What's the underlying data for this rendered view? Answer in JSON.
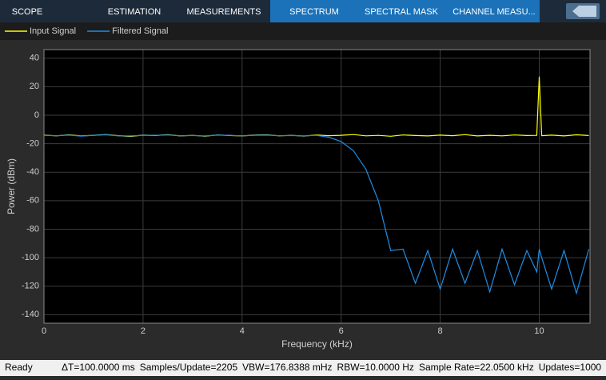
{
  "toolbar": {
    "tabs": [
      "SCOPE",
      "ESTIMATION",
      "MEASUREMENTS",
      "SPECTRUM",
      "SPECTRAL MASK",
      "CHANNEL MEASU..."
    ]
  },
  "chart_data": {
    "type": "line",
    "x_label": "Frequency (kHz)",
    "y_label": "Power (dBm)",
    "x": [
      0,
      0.25,
      0.5,
      0.75,
      1,
      1.25,
      1.5,
      1.75,
      2,
      2.25,
      2.5,
      2.75,
      3,
      3.25,
      3.5,
      3.75,
      4,
      4.25,
      4.5,
      4.75,
      5,
      5.25,
      5.5,
      5.75,
      6,
      6.25,
      6.5,
      6.75,
      7,
      7.25,
      7.5,
      7.75,
      8,
      8.25,
      8.5,
      8.75,
      9,
      9.25,
      9.5,
      9.75,
      9.95,
      10,
      10.05,
      10.25,
      10.5,
      10.75,
      11
    ],
    "series": [
      {
        "name": "Input Signal",
        "color": "#ffff00",
        "values": [
          -14,
          -14.5,
          -13.8,
          -14.6,
          -14.1,
          -13.6,
          -14.4,
          -14.9,
          -14,
          -14.3,
          -13.7,
          -14.6,
          -14.2,
          -14.8,
          -13.9,
          -14.3,
          -14.6,
          -14,
          -13.8,
          -14.5,
          -14.2,
          -14.7,
          -13.9,
          -14.4,
          -14.1,
          -13.6,
          -14.5,
          -14.2,
          -14.8,
          -13.9,
          -14.3,
          -14.6,
          -14,
          -14.4,
          -13.7,
          -14.6,
          -14.1,
          -14.5,
          -13.9,
          -14.3,
          -14.2,
          27,
          -14.4,
          -14,
          -14.6,
          -13.8,
          -14.3
        ]
      },
      {
        "name": "Filtered Signal",
        "color": "#1e8fe6",
        "values": [
          -14.2,
          -14.4,
          -14,
          -14.7,
          -14.1,
          -13.8,
          -14.5,
          -14.6,
          -14.1,
          -14.2,
          -13.9,
          -14.5,
          -14.3,
          -14.6,
          -14,
          -14.2,
          -14.5,
          -14.1,
          -14,
          -14.4,
          -14.3,
          -14.6,
          -14.2,
          -15.5,
          -18.5,
          -25,
          -38,
          -60,
          -95,
          -94,
          -118,
          -95,
          -122,
          -94,
          -118,
          -95,
          -124,
          -94,
          -119,
          -95,
          -110,
          -94,
          -100,
          -122,
          -95,
          -125,
          -94
        ]
      }
    ],
    "xlim": [
      0,
      11.025
    ],
    "xticks": [
      0,
      2,
      4,
      6,
      8,
      10
    ],
    "ylim": [
      -146,
      46
    ],
    "yticks": [
      -140,
      -120,
      -100,
      -80,
      -60,
      -40,
      -20,
      0,
      20,
      40
    ],
    "grid": true
  },
  "status_bar": {
    "state": "Ready",
    "items": [
      "ΔT=100.0000 ms",
      "Samples/Update=2205",
      "VBW=176.8388 mHz",
      "RBW=10.0000 Hz",
      "Sample Rate=22.0500 kHz",
      "Updates=1000"
    ]
  }
}
